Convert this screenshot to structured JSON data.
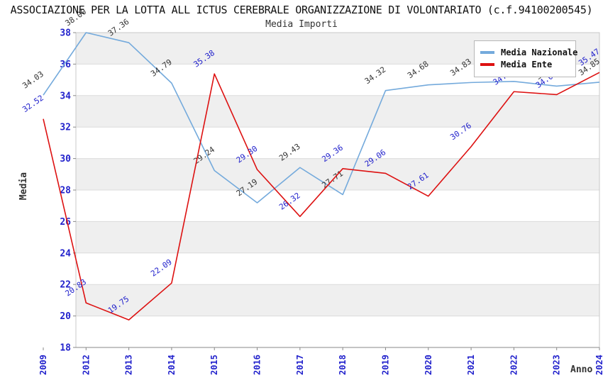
{
  "header": {
    "title": "ASSOCIAZIONE PER LA LOTTA ALL ICTUS CEREBRALE ORGANIZZAZIONE DI VOLONTARIATO (c.f.94100200545)",
    "subtitle": "Media Importi"
  },
  "chart_data": {
    "type": "line",
    "title": "ASSOCIAZIONE PER LA LOTTA ALL ICTUS CEREBRALE ORGANIZZAZIONE DI VOLONTARIATO (c.f.94100200545)",
    "subtitle": "Media Importi",
    "xlabel": "Anno",
    "ylabel": "Media",
    "ylim": [
      18,
      38
    ],
    "y_ticks": [
      38,
      36,
      34,
      32,
      30,
      28,
      26,
      24,
      22,
      20,
      18
    ],
    "gray_bands": [
      [
        36,
        38
      ],
      [
        32,
        34
      ],
      [
        28,
        30
      ],
      [
        24,
        26
      ],
      [
        20,
        22
      ]
    ],
    "grid": true,
    "legend_position": "top-right",
    "categories": [
      "2009",
      "2012",
      "2013",
      "2014",
      "2015",
      "2016",
      "2017",
      "2018",
      "2019",
      "2020",
      "2021",
      "2022",
      "2023",
      "2024"
    ],
    "series": [
      {
        "name": "Media Nazionale",
        "color": "#74aadc",
        "label_color": "#333333",
        "values": [
          34.03,
          38.0,
          37.36,
          34.79,
          29.24,
          27.19,
          29.43,
          27.71,
          34.32,
          34.68,
          34.83,
          34.9,
          34.6,
          34.85
        ],
        "labels": [
          "34.03",
          "38.00",
          "37.36",
          "34.79",
          "29.24",
          "27.19",
          "29.43",
          "27.71",
          "34.32",
          "34.68",
          "34.83",
          "34.9",
          "34.6",
          "34.85"
        ]
      },
      {
        "name": "Media Ente",
        "color": "#dd1111",
        "label_color": "#2222cc",
        "values": [
          32.52,
          20.83,
          19.75,
          22.09,
          35.38,
          29.3,
          26.32,
          29.36,
          29.06,
          27.61,
          30.76,
          34.25,
          34.06,
          35.47
        ],
        "labels": [
          "32.52",
          "20.83",
          "19.75",
          "22.09",
          "35.38",
          "29.30",
          "26.32",
          "29.36",
          "29.06",
          "27.61",
          "30.76",
          "34.25",
          "34.06",
          "35.47"
        ]
      }
    ]
  },
  "colors": {
    "band": "#efefef",
    "grid_line": "#dcdcdc",
    "plot_border": "#c8c8c8",
    "axis_line": "#888888",
    "tick_label": "#2222cc",
    "axis_title": "#333333"
  }
}
